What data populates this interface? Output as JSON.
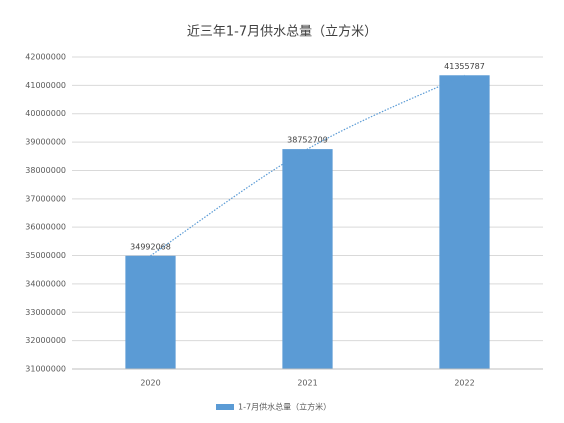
{
  "chart_data": {
    "type": "bar",
    "title": "近三年1-7月供水总量（立方米）",
    "categories": [
      "2020",
      "2021",
      "2022"
    ],
    "series": [
      {
        "name": "1-7月供水总量（立方米）",
        "color": "#5b9bd5",
        "values": [
          34992068,
          38752709,
          41355787
        ]
      }
    ],
    "ylim": [
      31000000,
      42000000
    ],
    "yticks": [
      31000000,
      32000000,
      33000000,
      34000000,
      35000000,
      36000000,
      37000000,
      38000000,
      39000000,
      40000000,
      41000000,
      42000000
    ],
    "grid": true,
    "trendline": true,
    "legend": "bottom"
  }
}
